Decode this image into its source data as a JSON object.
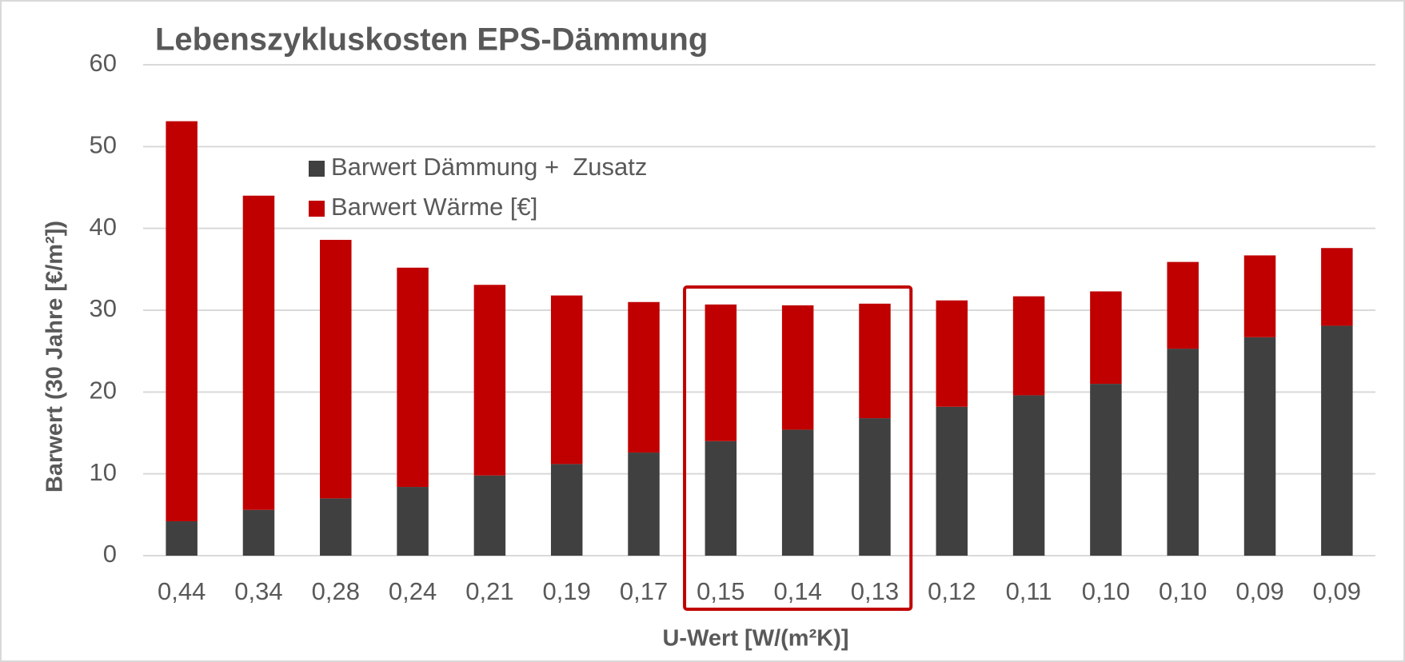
{
  "chart_data": {
    "type": "stacked_bar",
    "title": "Lebenszykluskosten EPS-Dämmung",
    "xlabel": "U-Wert [W/(m²K)]",
    "ylabel": "Barwert (30 Jahre [€/m²])",
    "categories": [
      "0,44",
      "0,34",
      "0,28",
      "0,24",
      "0,21",
      "0,19",
      "0,17",
      "0,15",
      "0,14",
      "0,13",
      "0,12",
      "0,11",
      "0,10",
      "0,10",
      "0,09",
      "0,09"
    ],
    "series": [
      {
        "name": "Barwert Dämmung +  Zusatz",
        "color": "#404040",
        "values": [
          4.2,
          5.6,
          7.0,
          8.4,
          9.8,
          11.2,
          12.6,
          14.0,
          15.4,
          16.8,
          18.2,
          19.6,
          21.0,
          25.3,
          26.7,
          28.1
        ]
      },
      {
        "name": "Barwert Wärme [€]",
        "color": "#c00000",
        "values": [
          48.9,
          38.4,
          31.6,
          26.8,
          23.3,
          20.6,
          18.4,
          16.7,
          15.2,
          14.0,
          13.0,
          12.1,
          11.3,
          10.6,
          10.0,
          9.5
        ]
      }
    ],
    "ylim": [
      0,
      60
    ],
    "yticks": [
      0,
      10,
      20,
      30,
      40,
      50,
      60
    ],
    "grid": true,
    "legend": "upper left"
  }
}
